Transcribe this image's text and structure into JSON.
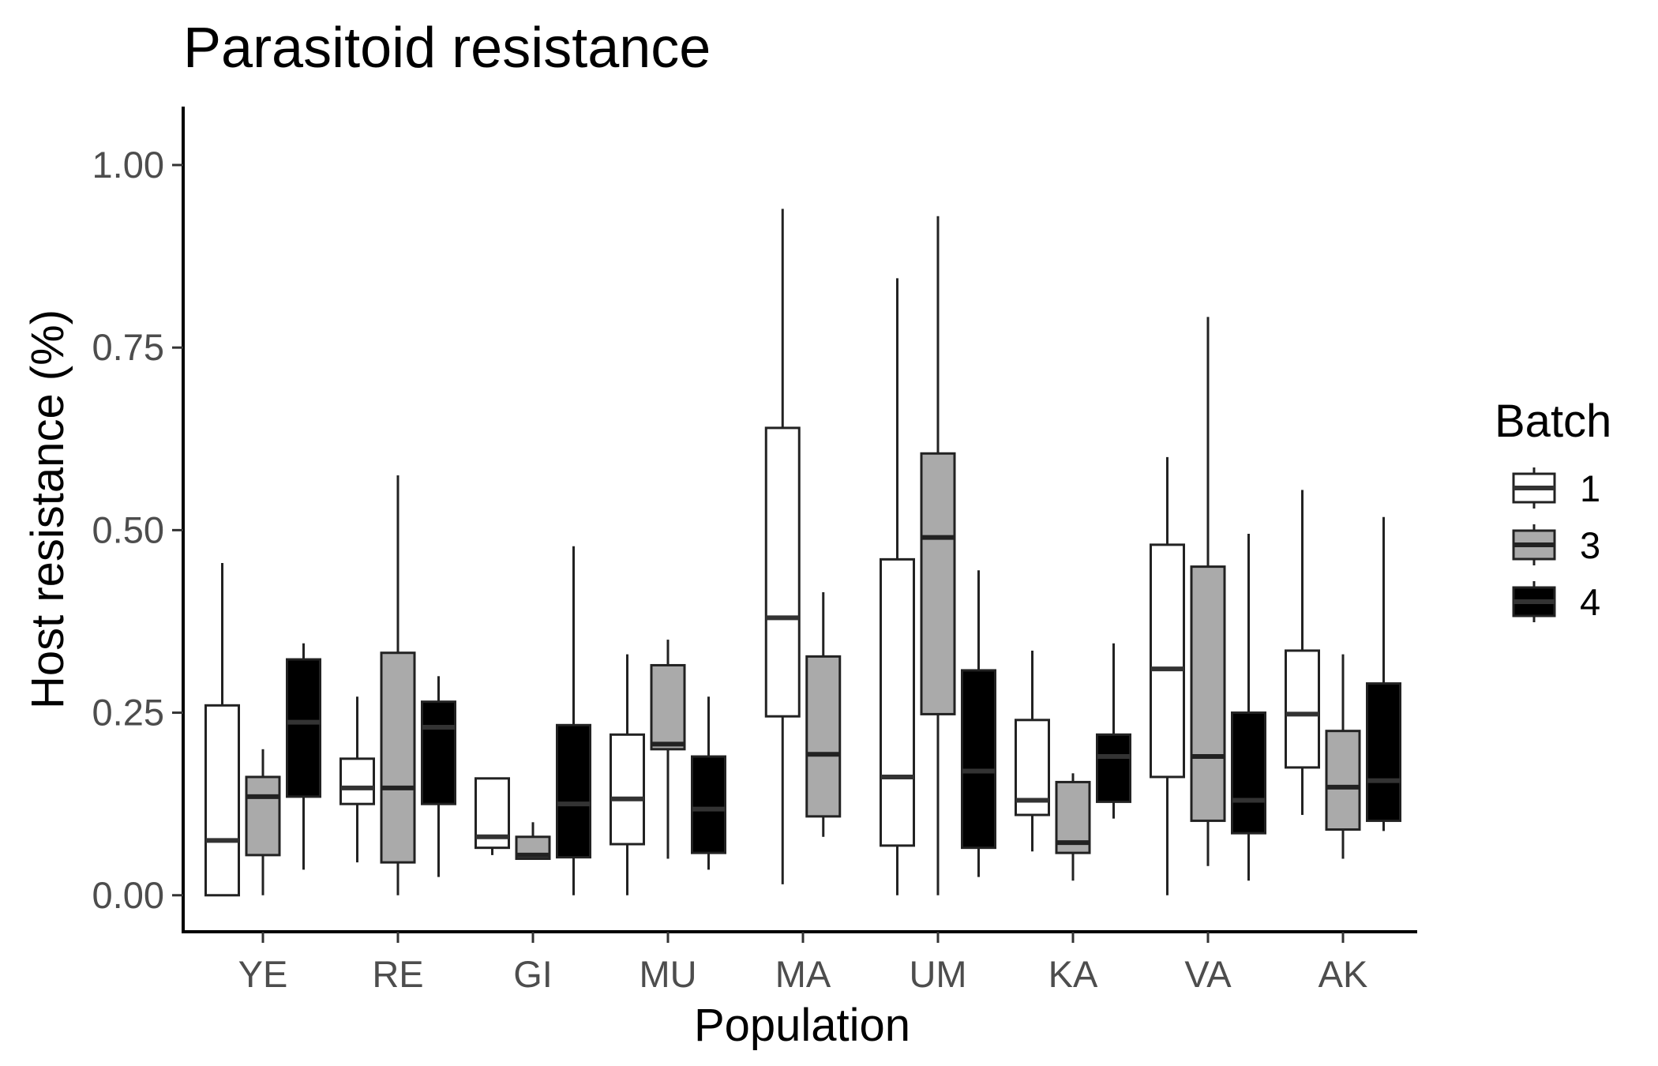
{
  "chart_data": {
    "type": "boxplot",
    "title": "Parasitoid resistance",
    "xlabel": "Population",
    "ylabel": "Host resistance (%)",
    "ylim": [
      -0.05,
      1.08
    ],
    "yticks": [
      0.0,
      0.25,
      0.5,
      0.75,
      1.0
    ],
    "ytick_labels": [
      "0.00",
      "0.25",
      "0.50",
      "0.75",
      "1.00"
    ],
    "categories": [
      "YE",
      "RE",
      "GI",
      "MU",
      "MA",
      "UM",
      "KA",
      "VA",
      "AK"
    ],
    "legend": {
      "title": "Batch",
      "position": "right"
    },
    "grid": false,
    "series": [
      {
        "name": "1",
        "color": "#ffffff",
        "median_color": "#333333",
        "boxes": [
          {
            "category": "YE",
            "min": 0.0,
            "q1": 0.0,
            "median": 0.075,
            "q3": 0.26,
            "max": 0.455
          },
          {
            "category": "RE",
            "min": 0.045,
            "q1": 0.125,
            "median": 0.147,
            "q3": 0.187,
            "max": 0.272
          },
          {
            "category": "GI",
            "min": 0.055,
            "q1": 0.065,
            "median": 0.08,
            "q3": 0.16,
            "max": 0.16
          },
          {
            "category": "MU",
            "min": 0.0,
            "q1": 0.07,
            "median": 0.132,
            "q3": 0.22,
            "max": 0.33
          },
          {
            "category": "MA",
            "min": 0.015,
            "q1": 0.245,
            "median": 0.38,
            "q3": 0.64,
            "max": 0.94
          },
          {
            "category": "UM",
            "min": 0.0,
            "q1": 0.068,
            "median": 0.162,
            "q3": 0.46,
            "max": 0.845
          },
          {
            "category": "KA",
            "min": 0.06,
            "q1": 0.11,
            "median": 0.13,
            "q3": 0.24,
            "max": 0.335
          },
          {
            "category": "VA",
            "min": 0.0,
            "q1": 0.162,
            "median": 0.31,
            "q3": 0.48,
            "max": 0.6
          },
          {
            "category": "AK",
            "min": 0.11,
            "q1": 0.175,
            "median": 0.248,
            "q3": 0.335,
            "max": 0.555
          }
        ]
      },
      {
        "name": "3",
        "color": "#aaaaaa",
        "median_color": "#222222",
        "boxes": [
          {
            "category": "YE",
            "min": 0.0,
            "q1": 0.055,
            "median": 0.135,
            "q3": 0.162,
            "max": 0.2
          },
          {
            "category": "RE",
            "min": 0.0,
            "q1": 0.045,
            "median": 0.147,
            "q3": 0.332,
            "max": 0.575
          },
          {
            "category": "GI",
            "min": 0.05,
            "q1": 0.05,
            "median": 0.055,
            "q3": 0.08,
            "max": 0.1
          },
          {
            "category": "MU",
            "min": 0.05,
            "q1": 0.2,
            "median": 0.207,
            "q3": 0.315,
            "max": 0.35
          },
          {
            "category": "MA",
            "min": 0.08,
            "q1": 0.108,
            "median": 0.193,
            "q3": 0.327,
            "max": 0.415
          },
          {
            "category": "UM",
            "min": 0.0,
            "q1": 0.248,
            "median": 0.49,
            "q3": 0.605,
            "max": 0.93
          },
          {
            "category": "KA",
            "min": 0.02,
            "q1": 0.058,
            "median": 0.072,
            "q3": 0.155,
            "max": 0.167
          },
          {
            "category": "VA",
            "min": 0.04,
            "q1": 0.102,
            "median": 0.19,
            "q3": 0.45,
            "max": 0.792
          },
          {
            "category": "AK",
            "min": 0.05,
            "q1": 0.09,
            "median": 0.148,
            "q3": 0.225,
            "max": 0.33
          }
        ]
      },
      {
        "name": "4",
        "color": "#000000",
        "median_color": "#333333",
        "boxes": [
          {
            "category": "YE",
            "min": 0.035,
            "q1": 0.135,
            "median": 0.237,
            "q3": 0.323,
            "max": 0.345
          },
          {
            "category": "RE",
            "min": 0.025,
            "q1": 0.125,
            "median": 0.23,
            "q3": 0.265,
            "max": 0.3
          },
          {
            "category": "GI",
            "min": 0.0,
            "q1": 0.052,
            "median": 0.125,
            "q3": 0.233,
            "max": 0.478
          },
          {
            "category": "MU",
            "min": 0.035,
            "q1": 0.058,
            "median": 0.118,
            "q3": 0.19,
            "max": 0.272
          },
          {
            "category": "UM",
            "min": 0.025,
            "q1": 0.065,
            "median": 0.17,
            "q3": 0.308,
            "max": 0.445
          },
          {
            "category": "KA",
            "min": 0.105,
            "q1": 0.128,
            "median": 0.19,
            "q3": 0.22,
            "max": 0.345
          },
          {
            "category": "VA",
            "min": 0.02,
            "q1": 0.085,
            "median": 0.13,
            "q3": 0.25,
            "max": 0.495
          },
          {
            "category": "AK",
            "min": 0.088,
            "q1": 0.102,
            "median": 0.157,
            "q3": 0.29,
            "max": 0.518
          }
        ]
      }
    ]
  }
}
